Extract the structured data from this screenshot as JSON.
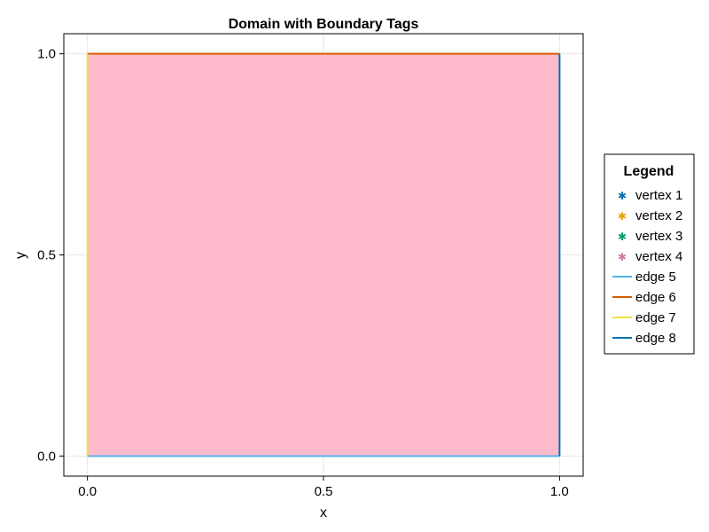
{
  "chart_data": {
    "type": "line",
    "title": "Domain with Boundary Tags",
    "xlabel": "x",
    "ylabel": "y",
    "xlim": [
      -0.05,
      1.05
    ],
    "ylim": [
      -0.05,
      1.05
    ],
    "x_ticks": [
      0.0,
      0.5,
      1.0
    ],
    "y_ticks": [
      0.0,
      0.5,
      1.0
    ],
    "x_tick_labels": [
      "0.0",
      "0.5",
      "1.0"
    ],
    "y_tick_labels": [
      "0.0",
      "0.5",
      "1.0"
    ],
    "grid": true,
    "domain_fill": {
      "polygon": [
        [
          0,
          0
        ],
        [
          1,
          0
        ],
        [
          1,
          1
        ],
        [
          0,
          1
        ]
      ],
      "color": "#ffbbcc"
    },
    "legend": {
      "title": "Legend",
      "placement": "right"
    },
    "series": [
      {
        "name": "vertex 1",
        "kind": "marker",
        "marker": "asterisk",
        "color": "#0072b2",
        "points": []
      },
      {
        "name": "vertex 2",
        "kind": "marker",
        "marker": "asterisk",
        "color": "#e69f00",
        "points": []
      },
      {
        "name": "vertex 3",
        "kind": "marker",
        "marker": "asterisk",
        "color": "#009e73",
        "points": []
      },
      {
        "name": "vertex 4",
        "kind": "marker",
        "marker": "asterisk",
        "color": "#cc79a7",
        "points": []
      },
      {
        "name": "edge 5",
        "kind": "line",
        "color": "#56b4e9",
        "points": [
          [
            0,
            0
          ],
          [
            1,
            0
          ]
        ]
      },
      {
        "name": "edge 6",
        "kind": "line",
        "color": "#d55e00",
        "points": [
          [
            1,
            1
          ],
          [
            0,
            1
          ]
        ]
      },
      {
        "name": "edge 7",
        "kind": "line",
        "color": "#f0e442",
        "points": [
          [
            0,
            1
          ],
          [
            0,
            0
          ]
        ]
      },
      {
        "name": "edge 8",
        "kind": "line",
        "color": "#0072b2",
        "points": [
          [
            1,
            0
          ],
          [
            1,
            1
          ]
        ]
      }
    ]
  }
}
